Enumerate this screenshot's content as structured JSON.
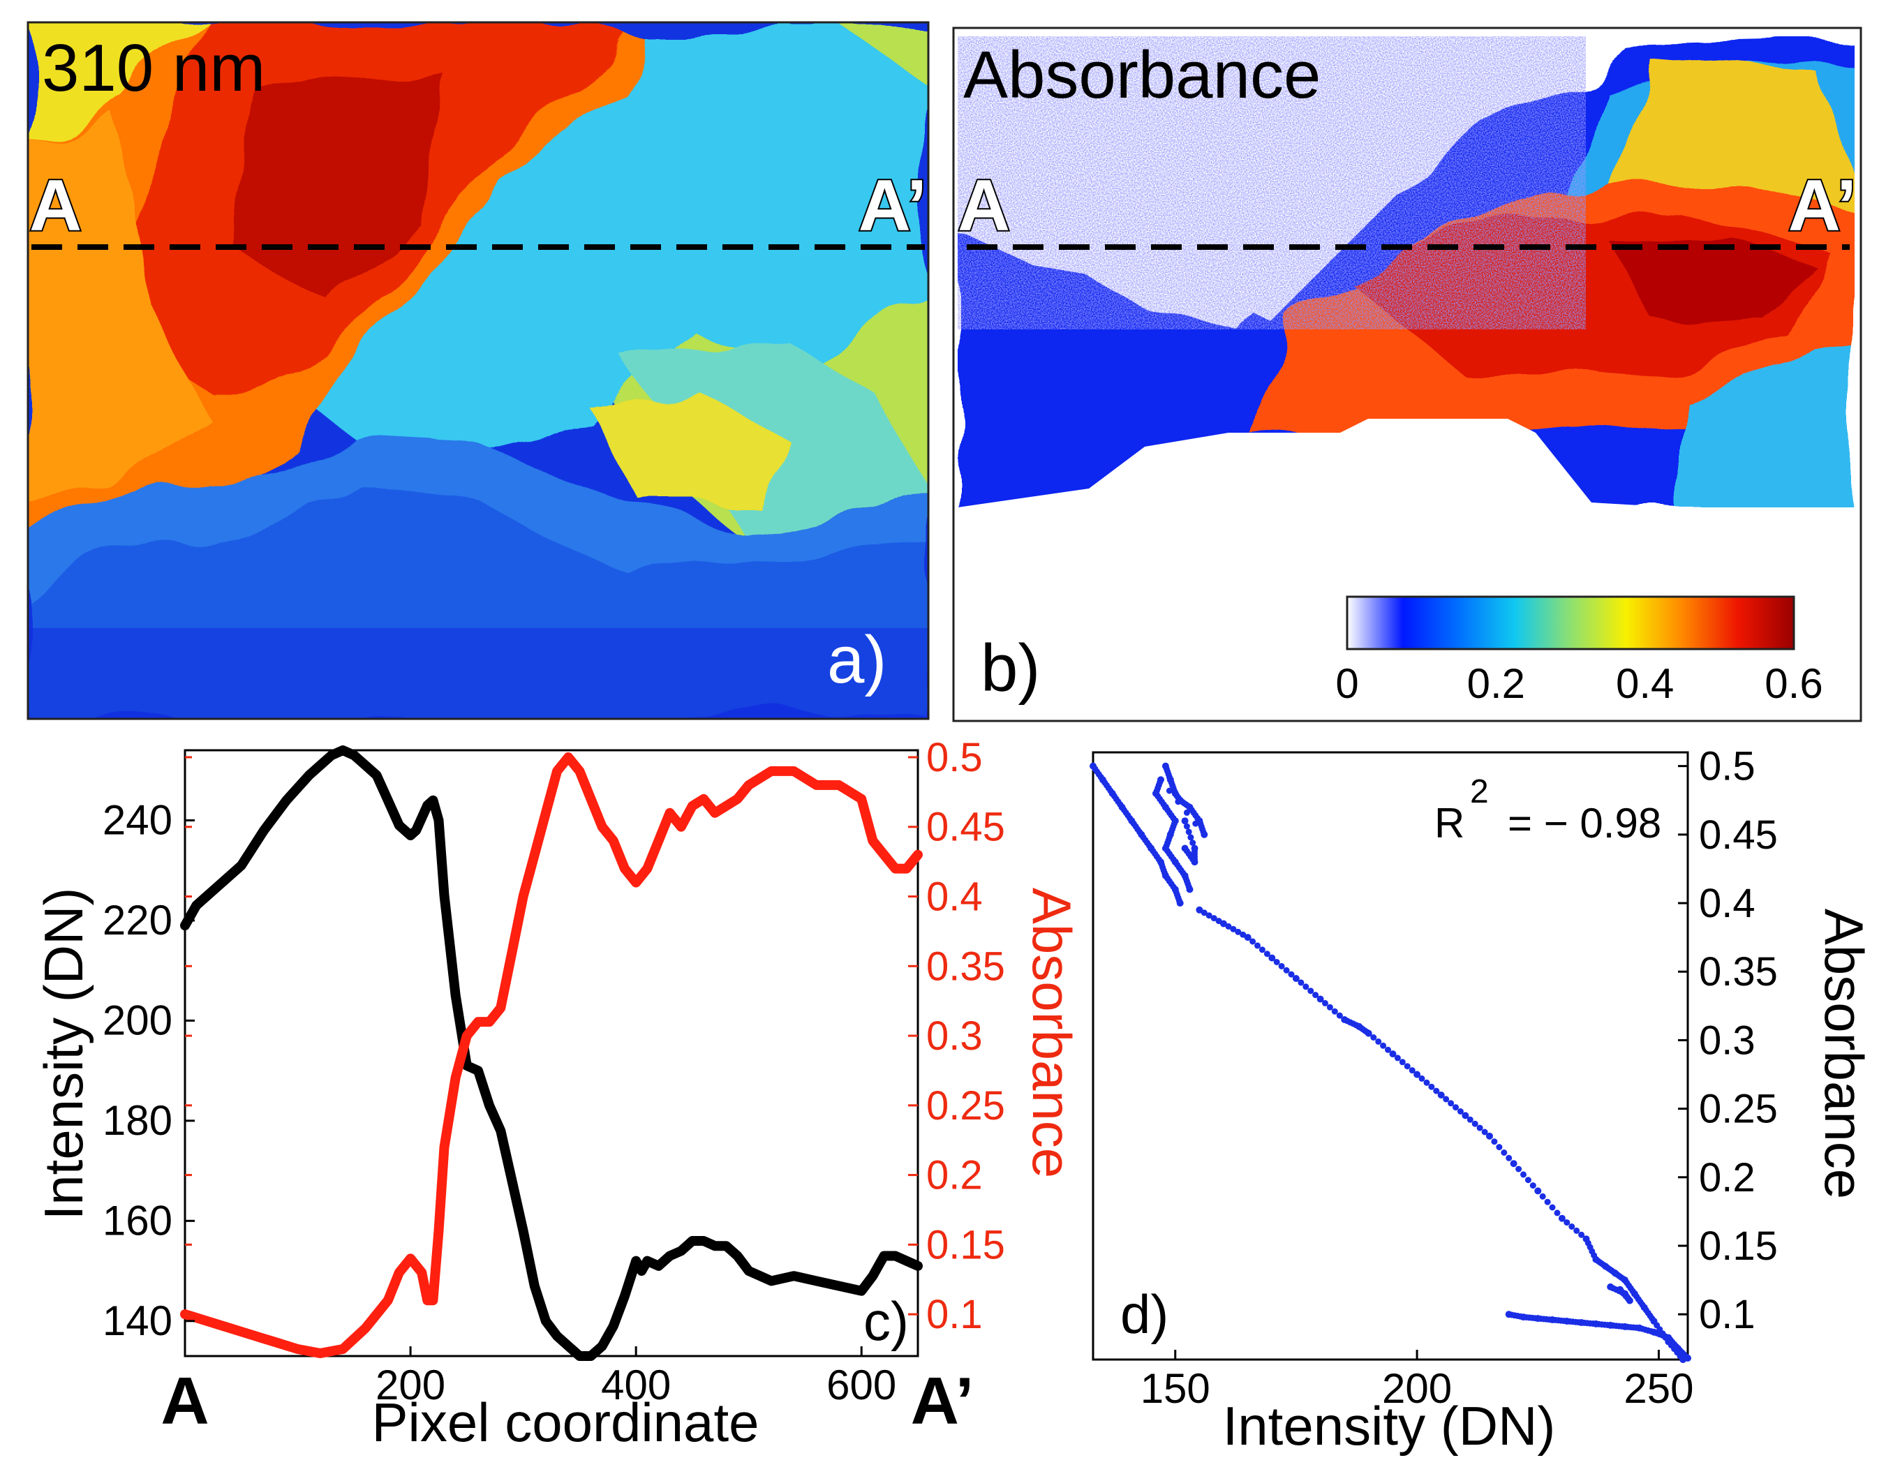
{
  "figure": {
    "panel_a": {
      "label": "a)",
      "title": "310 nm",
      "marker_start": "A",
      "marker_end": "A’"
    },
    "panel_b": {
      "label": "b)",
      "title": "Absorbance",
      "marker_start": "A",
      "marker_end": "A’",
      "colorbar": {
        "ticks": [
          "0",
          "0.2",
          "0.4",
          "0.6"
        ],
        "range": [
          0,
          0.6
        ],
        "colors": [
          "#ffffff",
          "#0018ff",
          "#0070ff",
          "#10c8f0",
          "#8ee070",
          "#f8f000",
          "#ff8800",
          "#ee1500",
          "#9a0000"
        ]
      }
    },
    "panel_c": {
      "label": "c)"
    },
    "panel_d": {
      "label": "d)",
      "r2_label": "R",
      "r2_exp": "2",
      "r2_value": "= − 0.98"
    }
  },
  "chart_data": [
    {
      "id": "c",
      "type": "line",
      "xlabel": "Pixel coordinate",
      "ylabel_left": "Intensity (DN)",
      "ylabel_right": "Absorbance",
      "x_end_labels": [
        "A",
        "A’"
      ],
      "xlim": [
        0,
        650
      ],
      "ylim_left": [
        133,
        254
      ],
      "ylim_right": [
        0.07,
        0.505
      ],
      "xticks": [
        200,
        400,
        600
      ],
      "yticks_left": [
        140,
        160,
        180,
        200,
        220,
        240
      ],
      "yticks_right": [
        0.1,
        0.15,
        0.2,
        0.25,
        0.3,
        0.35,
        0.4,
        0.45,
        0.5
      ],
      "yticks_right_labels": [
        "0.1",
        "0.15",
        "0.2",
        "0.25",
        "0.3",
        "0.35",
        "0.4",
        "0.45",
        "0.5"
      ],
      "series": [
        {
          "name": "Intensity",
          "axis": "left",
          "color": "#000000",
          "x": [
            0,
            10,
            30,
            50,
            70,
            90,
            110,
            130,
            140,
            150,
            160,
            170,
            180,
            190,
            200,
            205,
            215,
            220,
            225,
            230,
            240,
            250,
            260,
            270,
            280,
            290,
            300,
            310,
            320,
            330,
            340,
            350,
            360,
            370,
            380,
            390,
            400,
            405,
            410,
            420,
            430,
            440,
            450,
            460,
            470,
            480,
            490,
            500,
            520,
            540,
            560,
            580,
            600,
            610,
            620,
            630,
            640,
            650
          ],
          "y": [
            219,
            223,
            227,
            231,
            238,
            244,
            249,
            253,
            254,
            253,
            251,
            249,
            244,
            239,
            237,
            238,
            243,
            244,
            240,
            225,
            205,
            191,
            190,
            183,
            178,
            168,
            158,
            147,
            140,
            137,
            135,
            133,
            133,
            135,
            139,
            145,
            152,
            150,
            152,
            151,
            153,
            154,
            156,
            156,
            155,
            155,
            153,
            150,
            148,
            149,
            148,
            147,
            146,
            149,
            153,
            153,
            152,
            151
          ]
        },
        {
          "name": "Absorbance",
          "axis": "right",
          "color": "#ff2010",
          "x": [
            0,
            20,
            40,
            60,
            80,
            100,
            120,
            140,
            160,
            180,
            190,
            200,
            210,
            215,
            220,
            225,
            230,
            240,
            250,
            260,
            270,
            280,
            290,
            300,
            310,
            320,
            330,
            340,
            350,
            360,
            370,
            380,
            390,
            400,
            410,
            420,
            430,
            440,
            450,
            460,
            470,
            480,
            490,
            500,
            520,
            540,
            560,
            580,
            600,
            610,
            620,
            630,
            640,
            650
          ],
          "y": [
            0.1,
            0.095,
            0.09,
            0.085,
            0.08,
            0.075,
            0.072,
            0.075,
            0.09,
            0.11,
            0.13,
            0.14,
            0.13,
            0.11,
            0.11,
            0.16,
            0.22,
            0.27,
            0.3,
            0.31,
            0.31,
            0.32,
            0.36,
            0.4,
            0.43,
            0.46,
            0.49,
            0.5,
            0.49,
            0.47,
            0.45,
            0.44,
            0.42,
            0.41,
            0.42,
            0.44,
            0.46,
            0.45,
            0.465,
            0.47,
            0.46,
            0.465,
            0.47,
            0.48,
            0.49,
            0.49,
            0.48,
            0.48,
            0.47,
            0.44,
            0.43,
            0.42,
            0.42,
            0.43
          ]
        }
      ]
    },
    {
      "id": "d",
      "type": "scatter",
      "xlabel": "Intensity (DN)",
      "ylabel": "Absorbance",
      "xlim": [
        133,
        256
      ],
      "ylim": [
        0.067,
        0.51
      ],
      "xticks": [
        150,
        200,
        250
      ],
      "yticks": [
        0.1,
        0.15,
        0.2,
        0.25,
        0.3,
        0.35,
        0.4,
        0.45,
        0.5
      ],
      "ytick_labels": [
        "0.1",
        "0.15",
        "0.2",
        "0.25",
        "0.3",
        "0.35",
        "0.4",
        "0.45",
        "0.5"
      ],
      "series": [
        {
          "name": "Intensity vs Absorbance",
          "color": "#1a2ee6",
          "points": [
            [
              133,
              0.5
            ],
            [
              135,
              0.49
            ],
            [
              137,
              0.48
            ],
            [
              139,
              0.47
            ],
            [
              141,
              0.46
            ],
            [
              143,
              0.45
            ],
            [
              145,
              0.44
            ],
            [
              147,
              0.43
            ],
            [
              148,
              0.42
            ],
            [
              150,
              0.41
            ],
            [
              151,
              0.4
            ],
            [
              148,
              0.5
            ],
            [
              149,
              0.49
            ],
            [
              150,
              0.48
            ],
            [
              151,
              0.475
            ],
            [
              153,
              0.47
            ],
            [
              155,
              0.46
            ],
            [
              156,
              0.45
            ],
            [
              147,
              0.49
            ],
            [
              146,
              0.48
            ],
            [
              148,
              0.47
            ],
            [
              150,
              0.46
            ],
            [
              149,
              0.45
            ],
            [
              148,
              0.44
            ],
            [
              150,
              0.43
            ],
            [
              152,
              0.42
            ],
            [
              153,
              0.41
            ],
            [
              152,
              0.46
            ],
            [
              154,
              0.44
            ],
            [
              154,
              0.43
            ],
            [
              152,
              0.44
            ],
            [
              155,
              0.395
            ],
            [
              160,
              0.385
            ],
            [
              165,
              0.375
            ],
            [
              170,
              0.36
            ],
            [
              175,
              0.345
            ],
            [
              180,
              0.33
            ],
            [
              185,
              0.315
            ],
            [
              188,
              0.31
            ],
            [
              190,
              0.305
            ],
            [
              195,
              0.29
            ],
            [
              200,
              0.275
            ],
            [
              205,
              0.26
            ],
            [
              210,
              0.245
            ],
            [
              215,
              0.23
            ],
            [
              220,
              0.21
            ],
            [
              225,
              0.19
            ],
            [
              230,
              0.17
            ],
            [
              235,
              0.155
            ],
            [
              237,
              0.14
            ],
            [
              239,
              0.135
            ],
            [
              241,
              0.13
            ],
            [
              243,
              0.125
            ],
            [
              245,
              0.115
            ],
            [
              247,
              0.105
            ],
            [
              249,
              0.095
            ],
            [
              252,
              0.08
            ],
            [
              255,
              0.067
            ],
            [
              219,
              0.1
            ],
            [
              222,
              0.098
            ],
            [
              225,
              0.097
            ],
            [
              228,
              0.096
            ],
            [
              231,
              0.095
            ],
            [
              234,
              0.094
            ],
            [
              237,
              0.093
            ],
            [
              240,
              0.092
            ],
            [
              243,
              0.091
            ],
            [
              246,
              0.09
            ],
            [
              249,
              0.087
            ],
            [
              252,
              0.083
            ],
            [
              254,
              0.075
            ],
            [
              256,
              0.068
            ],
            [
              240,
              0.12
            ],
            [
              243,
              0.115
            ],
            [
              244,
              0.11
            ],
            [
              242,
              0.118
            ]
          ]
        }
      ]
    }
  ]
}
